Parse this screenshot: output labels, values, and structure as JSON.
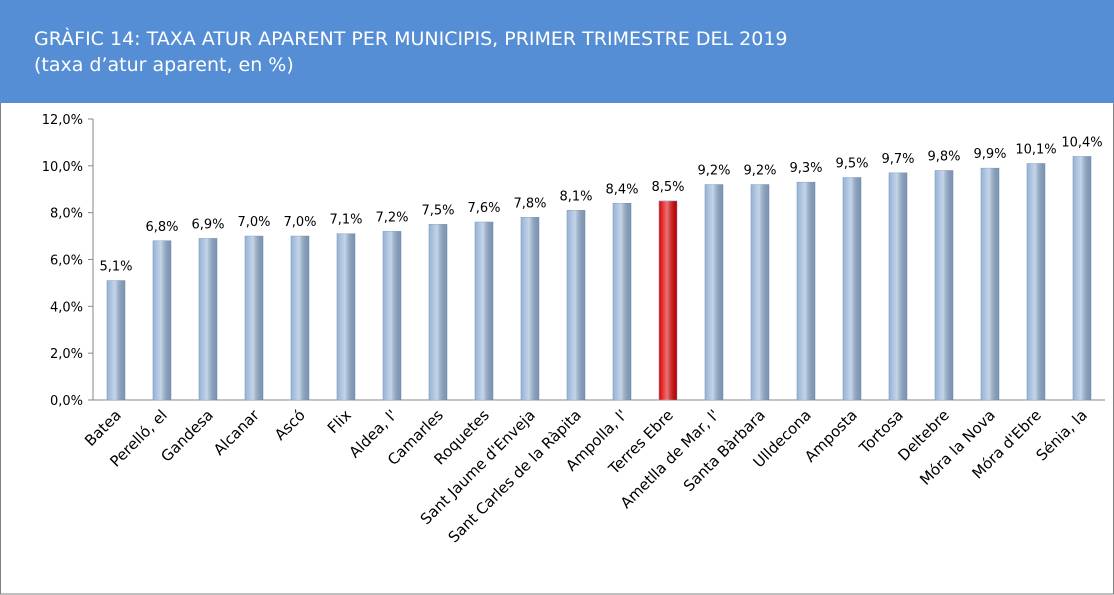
{
  "chart_data": {
    "type": "bar",
    "title": "GRÀFIC 14: TAXA ATUR APARENT PER MUNICIPIS, PRIMER TRIMESTRE DEL 2019",
    "subtitle": "(taxa d’atur aparent, en %)",
    "categories": [
      "Batea",
      "Perelló, el",
      "Gandesa",
      "Alcanar",
      "Ascó",
      "Flix",
      "Aldea, l'",
      "Camarles",
      "Roquetes",
      "Sant Jaume d'Enveja",
      "Sant Carles de la Ràpita",
      "Ampolla, l'",
      "Terres Ebre",
      "Ametlla de Mar, l'",
      "Santa Bàrbara",
      "Ulldecona",
      "Amposta",
      "Tortosa",
      "Deltebre",
      "Móra la Nova",
      "Móra d'Ebre",
      "Sénia, la"
    ],
    "values": [
      5.1,
      6.8,
      6.9,
      7.0,
      7.0,
      7.1,
      7.2,
      7.5,
      7.6,
      7.8,
      8.1,
      8.4,
      8.5,
      9.2,
      9.2,
      9.3,
      9.5,
      9.7,
      9.8,
      9.9,
      10.1,
      10.4
    ],
    "value_labels": [
      "5,1%",
      "6,8%",
      "6,9%",
      "7,0%",
      "7,0%",
      "7,1%",
      "7,2%",
      "7,5%",
      "7,6%",
      "7,8%",
      "8,1%",
      "8,4%",
      "8,5%",
      "9,2%",
      "9,2%",
      "9,3%",
      "9,5%",
      "9,7%",
      "9,8%",
      "9,9%",
      "10,1%",
      "10,4%"
    ],
    "colors": [
      "#95b3d7",
      "#95b3d7",
      "#95b3d7",
      "#95b3d7",
      "#95b3d7",
      "#95b3d7",
      "#95b3d7",
      "#95b3d7",
      "#95b3d7",
      "#95b3d7",
      "#95b3d7",
      "#95b3d7",
      "#e00000",
      "#95b3d7",
      "#95b3d7",
      "#95b3d7",
      "#95b3d7",
      "#95b3d7",
      "#95b3d7",
      "#95b3d7",
      "#95b3d7",
      "#95b3d7"
    ],
    "ylim": [
      0,
      12
    ],
    "yticks": [
      {
        "value": 0,
        "label": "0,0%"
      },
      {
        "value": 2,
        "label": "2,0%"
      },
      {
        "value": 4,
        "label": "4,0%"
      },
      {
        "value": 6,
        "label": "6,0%"
      },
      {
        "value": 8,
        "label": "8,0%"
      },
      {
        "value": 10,
        "label": "10,0%"
      },
      {
        "value": 12,
        "label": "12,0%"
      }
    ],
    "grid": false
  }
}
